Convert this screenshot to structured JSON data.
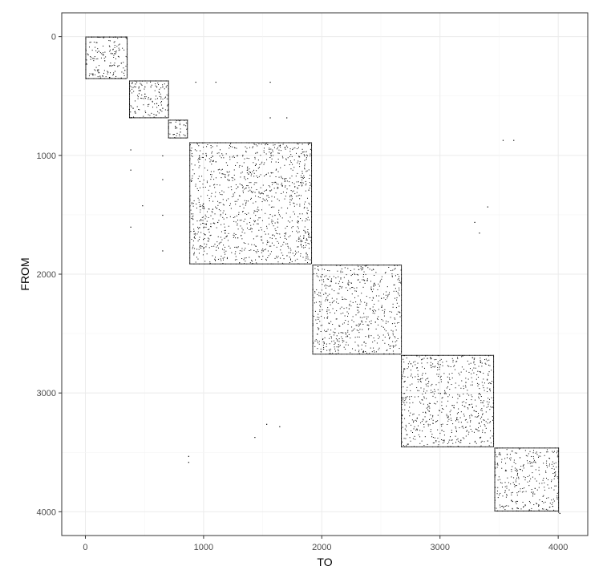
{
  "chart_data": {
    "type": "scatter",
    "title": "",
    "xlabel": "TO",
    "ylabel": "FROM",
    "xlim": [
      -200,
      4250
    ],
    "ylim": [
      4200,
      -200
    ],
    "y_reversed": true,
    "x_ticks": [
      0,
      1000,
      2000,
      3000,
      4000
    ],
    "y_ticks": [
      0,
      1000,
      2000,
      3000,
      4000
    ],
    "x_tick_labels": [
      "0",
      "1000",
      "2000",
      "3000",
      "4000"
    ],
    "y_tick_labels": [
      "0",
      "1000",
      "2000",
      "3000",
      "4000"
    ],
    "grid": true,
    "legend": "none",
    "colors": {
      "points": "#000000",
      "grid_major": "#ebebeb",
      "grid_minor": "#f5f5f5",
      "panel_border": "#333333"
    },
    "blocks": [
      {
        "name": "block-1",
        "x_range": [
          0,
          350
        ],
        "y_range": [
          0,
          350
        ]
      },
      {
        "name": "block-2",
        "x_range": [
          370,
          700
        ],
        "y_range": [
          370,
          680
        ]
      },
      {
        "name": "block-3",
        "x_range": [
          700,
          860
        ],
        "y_range": [
          700,
          850
        ]
      },
      {
        "name": "block-4",
        "x_range": [
          880,
          1910
        ],
        "y_range": [
          890,
          1910
        ]
      },
      {
        "name": "block-5",
        "x_range": [
          1920,
          2670
        ],
        "y_range": [
          1920,
          2670
        ]
      },
      {
        "name": "block-6",
        "x_range": [
          2670,
          3450
        ],
        "y_range": [
          2680,
          3450
        ]
      },
      {
        "name": "block-7",
        "x_range": [
          3460,
          4000
        ],
        "y_range": [
          3460,
          3990
        ]
      }
    ],
    "points": [
      [
        50,
        0
      ],
      [
        100,
        0
      ],
      [
        150,
        0
      ],
      [
        200,
        0
      ],
      [
        250,
        0
      ],
      [
        300,
        0
      ],
      [
        340,
        0
      ],
      [
        5,
        350
      ],
      [
        60,
        320
      ],
      [
        120,
        330
      ],
      [
        200,
        340
      ],
      [
        300,
        345
      ],
      [
        20,
        150
      ],
      [
        60,
        180
      ],
      [
        110,
        120
      ],
      [
        160,
        200
      ],
      [
        210,
        240
      ],
      [
        250,
        140
      ],
      [
        300,
        220
      ],
      [
        330,
        280
      ],
      [
        390,
        390
      ],
      [
        420,
        420
      ],
      [
        450,
        450
      ],
      [
        500,
        480
      ],
      [
        550,
        520
      ],
      [
        600,
        560
      ],
      [
        650,
        600
      ],
      [
        400,
        600
      ],
      [
        420,
        640
      ],
      [
        380,
        680
      ],
      [
        450,
        420
      ],
      [
        500,
        420
      ],
      [
        550,
        420
      ],
      [
        600,
        420
      ],
      [
        650,
        420
      ],
      [
        680,
        420
      ],
      [
        720,
        720
      ],
      [
        760,
        760
      ],
      [
        800,
        800
      ],
      [
        840,
        830
      ],
      [
        740,
        820
      ],
      [
        830,
        740
      ],
      [
        960,
        1000
      ],
      [
        1100,
        1050
      ],
      [
        1200,
        1200
      ],
      [
        1400,
        1300
      ],
      [
        1600,
        1500
      ],
      [
        1800,
        1700
      ],
      [
        1500,
        1800
      ],
      [
        1000,
        1600
      ],
      [
        1300,
        1900
      ],
      [
        1850,
        1000
      ],
      [
        2000,
        2000
      ],
      [
        2150,
        2100
      ],
      [
        2300,
        2300
      ],
      [
        2450,
        2400
      ],
      [
        2600,
        2600
      ],
      [
        2200,
        2500
      ],
      [
        2500,
        2200
      ],
      [
        2750,
        2750
      ],
      [
        2900,
        2900
      ],
      [
        3000,
        3000
      ],
      [
        3100,
        3100
      ],
      [
        3300,
        3300
      ],
      [
        3400,
        3400
      ],
      [
        2800,
        3300
      ],
      [
        3500,
        3500
      ],
      [
        3650,
        3650
      ],
      [
        3800,
        3800
      ],
      [
        3950,
        3950
      ],
      [
        3600,
        3900
      ],
      [
        380,
        950
      ],
      [
        380,
        1120
      ],
      [
        380,
        1600
      ],
      [
        480,
        1420
      ],
      [
        650,
        1000
      ],
      [
        650,
        1200
      ],
      [
        650,
        1500
      ],
      [
        650,
        1800
      ],
      [
        930,
        380
      ],
      [
        1100,
        380
      ],
      [
        1560,
        380
      ],
      [
        1560,
        680
      ],
      [
        1700,
        680
      ],
      [
        1430,
        3370
      ],
      [
        1530,
        3260
      ],
      [
        1640,
        3280
      ],
      [
        870,
        3530
      ],
      [
        870,
        3580
      ],
      [
        3530,
        870
      ],
      [
        3620,
        870
      ],
      [
        3290,
        1560
      ],
      [
        3330,
        1650
      ],
      [
        3400,
        1430
      ],
      [
        4000,
        4000
      ],
      [
        4010,
        4010
      ]
    ]
  }
}
